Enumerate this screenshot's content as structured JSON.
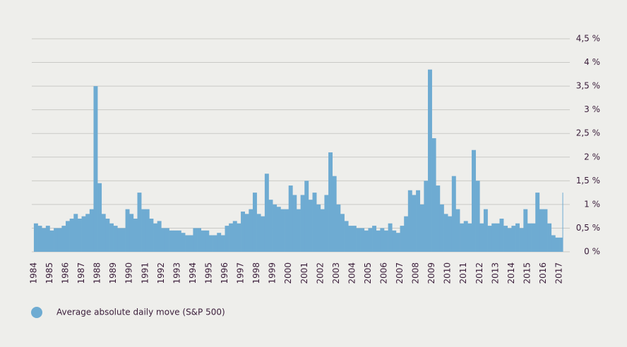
{
  "chart_data": {
    "type": "bar",
    "x": [
      1984,
      1984.25,
      1984.5,
      1984.75,
      1985,
      1985.25,
      1985.5,
      1985.75,
      1986,
      1986.25,
      1986.5,
      1986.75,
      1987,
      1987.25,
      1987.5,
      1987.75,
      1988,
      1988.25,
      1988.5,
      1988.75,
      1989,
      1989.25,
      1989.5,
      1989.75,
      1990,
      1990.25,
      1990.5,
      1990.75,
      1991,
      1991.25,
      1991.5,
      1991.75,
      1992,
      1992.25,
      1992.5,
      1992.75,
      1993,
      1993.25,
      1993.5,
      1993.75,
      1994,
      1994.25,
      1994.5,
      1994.75,
      1995,
      1995.25,
      1995.5,
      1995.75,
      1996,
      1996.25,
      1996.5,
      1996.75,
      1997,
      1997.25,
      1997.5,
      1997.75,
      1998,
      1998.25,
      1998.5,
      1998.75,
      1999,
      1999.25,
      1999.5,
      1999.75,
      2000,
      2000.25,
      2000.5,
      2000.75,
      2001,
      2001.25,
      2001.5,
      2001.75,
      2002,
      2002.25,
      2002.5,
      2002.75,
      2003,
      2003.25,
      2003.5,
      2003.75,
      2004,
      2004.25,
      2004.5,
      2004.75,
      2005,
      2005.25,
      2005.5,
      2005.75,
      2006,
      2006.25,
      2006.5,
      2006.75,
      2007,
      2007.25,
      2007.5,
      2007.75,
      2008,
      2008.25,
      2008.5,
      2008.75,
      2009,
      2009.25,
      2009.5,
      2009.75,
      2010,
      2010.25,
      2010.5,
      2010.75,
      2011,
      2011.25,
      2011.5,
      2011.75,
      2012,
      2012.25,
      2012.5,
      2012.75,
      2013,
      2013.25,
      2013.5,
      2013.75,
      2014,
      2014.25,
      2014.5,
      2014.75,
      2015,
      2015.25,
      2015.5,
      2015.75,
      2016,
      2016.25,
      2016.5,
      2016.75,
      2017,
      2017.2
    ],
    "series": [
      {
        "name": "Average absolute daily move (S&P 500)",
        "color": "#6eabd2",
        "values": [
          0.6,
          0.55,
          0.5,
          0.55,
          0.45,
          0.5,
          0.5,
          0.55,
          0.65,
          0.7,
          0.8,
          0.7,
          0.75,
          0.8,
          0.9,
          3.5,
          1.45,
          0.8,
          0.7,
          0.6,
          0.55,
          0.5,
          0.5,
          0.9,
          0.8,
          0.7,
          1.25,
          0.9,
          0.9,
          0.7,
          0.6,
          0.65,
          0.5,
          0.5,
          0.45,
          0.45,
          0.45,
          0.4,
          0.35,
          0.35,
          0.5,
          0.5,
          0.45,
          0.45,
          0.35,
          0.35,
          0.4,
          0.35,
          0.55,
          0.6,
          0.65,
          0.6,
          0.85,
          0.8,
          0.9,
          1.25,
          0.8,
          0.75,
          1.65,
          1.1,
          1.0,
          0.95,
          0.9,
          0.9,
          1.4,
          1.2,
          0.9,
          1.2,
          1.5,
          1.1,
          1.25,
          1.0,
          0.9,
          1.2,
          2.1,
          1.6,
          1.0,
          0.8,
          0.65,
          0.55,
          0.55,
          0.5,
          0.5,
          0.45,
          0.5,
          0.55,
          0.45,
          0.5,
          0.45,
          0.6,
          0.45,
          0.4,
          0.55,
          0.75,
          1.3,
          1.2,
          1.3,
          1.0,
          1.5,
          3.85,
          2.4,
          1.4,
          1.0,
          0.8,
          0.75,
          1.6,
          0.9,
          0.6,
          0.65,
          0.6,
          2.15,
          1.5,
          0.6,
          0.9,
          0.55,
          0.6,
          0.6,
          0.7,
          0.55,
          0.5,
          0.55,
          0.6,
          0.5,
          0.9,
          0.6,
          0.6,
          1.25,
          0.9,
          0.9,
          0.6,
          0.35,
          0.3,
          0.3,
          1.25
        ]
      }
    ],
    "xlim": [
      1983.87,
      2017.22
    ],
    "xticks": [
      1984,
      1985,
      1986,
      1987,
      1988,
      1989,
      1990,
      1991,
      1992,
      1993,
      1994,
      1995,
      1996,
      1997,
      1998,
      1999,
      2000,
      2001,
      2002,
      2003,
      2004,
      2005,
      2006,
      2007,
      2008,
      2009,
      2010,
      2011,
      2012,
      2013,
      2014,
      2015,
      2016,
      2017
    ],
    "ylim": [
      0,
      4.5
    ],
    "yticks": [
      {
        "value": 0,
        "label": "0 %"
      },
      {
        "value": 0.5,
        "label": "0,5 %"
      },
      {
        "value": 1,
        "label": "1 %"
      },
      {
        "value": 1.5,
        "label": "1,5 %"
      },
      {
        "value": 2,
        "label": "2 %"
      },
      {
        "value": 2.5,
        "label": "2,5 %"
      },
      {
        "value": 3,
        "label": "3 %"
      },
      {
        "value": 3.5,
        "label": "3,5 %"
      },
      {
        "value": 4,
        "label": "4 %"
      },
      {
        "value": 4.5,
        "label": "4,5 %"
      }
    ],
    "grid": true
  }
}
